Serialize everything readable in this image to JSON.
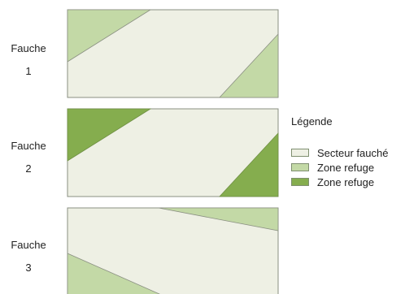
{
  "rows": [
    {
      "label": "Fauche",
      "number": "1"
    },
    {
      "label": "Fauche",
      "number": "2"
    },
    {
      "label": "Fauche",
      "number": "3"
    }
  ],
  "legend": {
    "title": "Légende",
    "items": [
      {
        "label": "Secteur fauché",
        "color": "#eef0e4"
      },
      {
        "label": "Zone refuge",
        "color": "#c3d9a6"
      },
      {
        "label": "Zone refuge",
        "color": "#85ad4e"
      }
    ]
  },
  "colors": {
    "mowed": "#eef0e4",
    "refuge_light": "#c3d9a6",
    "refuge_dark": "#85ad4e",
    "border": "#8a8f82"
  }
}
